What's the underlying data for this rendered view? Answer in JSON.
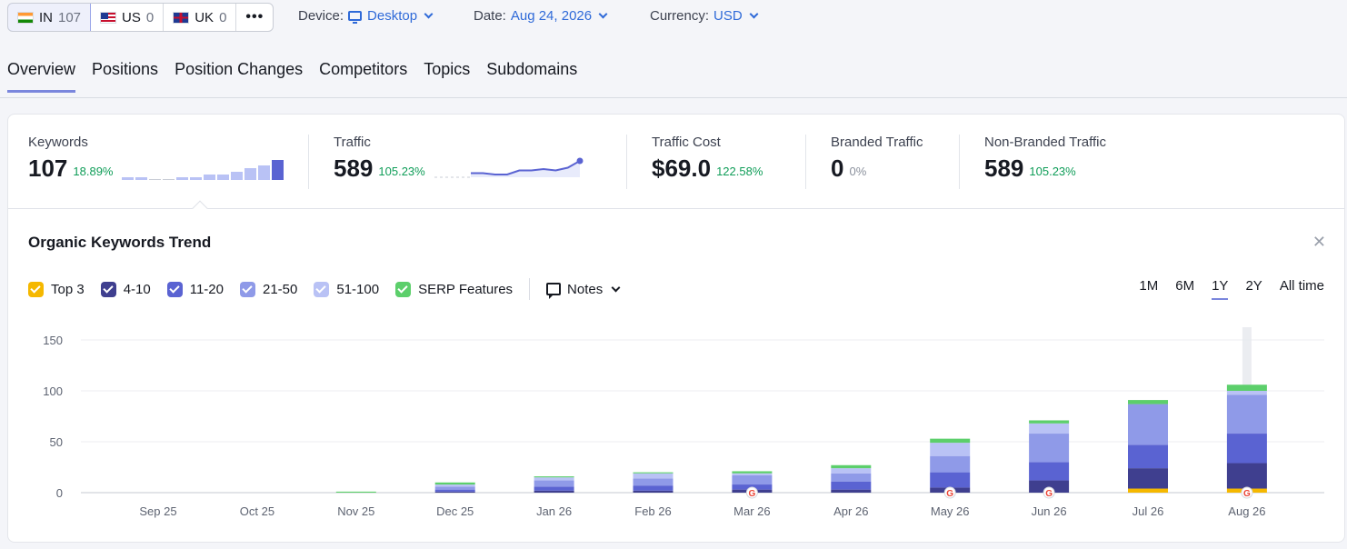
{
  "databases": [
    {
      "code": "IN",
      "count": "107",
      "flag": "india-flag-icon"
    },
    {
      "code": "US",
      "count": "0",
      "flag": "us-flag-icon"
    },
    {
      "code": "UK",
      "count": "0",
      "flag": "uk-flag-icon"
    }
  ],
  "filters": {
    "device_label": "Device:",
    "device_value": "Desktop",
    "date_label": "Date:",
    "date_value": "Aug 24, 2026",
    "currency_label": "Currency:",
    "currency_value": "USD"
  },
  "tabs": [
    "Overview",
    "Positions",
    "Position Changes",
    "Competitors",
    "Topics",
    "Subdomains"
  ],
  "metrics": {
    "keywords": {
      "label": "Keywords",
      "value": "107",
      "change": "18.89%"
    },
    "traffic": {
      "label": "Traffic",
      "value": "589",
      "change": "105.23%"
    },
    "traffic_cost": {
      "label": "Traffic Cost",
      "value": "$69.0",
      "change": "122.58%"
    },
    "branded": {
      "label": "Branded Traffic",
      "value": "0",
      "change": "0%"
    },
    "non_branded": {
      "label": "Non-Branded Traffic",
      "value": "589",
      "change": "105.23%"
    }
  },
  "chart_title": "Organic Keywords Trend",
  "legend": [
    {
      "label": "Top 3",
      "color": "#f5b800"
    },
    {
      "label": "4-10",
      "color": "#3f3f8f"
    },
    {
      "label": "11-20",
      "color": "#5a63d2"
    },
    {
      "label": "21-50",
      "color": "#8f9ae8"
    },
    {
      "label": "51-100",
      "color": "#b9c2f5"
    },
    {
      "label": "SERP Features",
      "color": "#5ccf6b"
    }
  ],
  "notes_label": "Notes",
  "ranges": [
    "1M",
    "6M",
    "1Y",
    "2Y",
    "All time"
  ],
  "active_range": "1Y",
  "chart_data": {
    "type": "bar",
    "stacked": true,
    "categories": [
      "Sep 25",
      "Oct 25",
      "Nov 25",
      "Dec 25",
      "Jan 26",
      "Feb 26",
      "Mar 26",
      "Apr 26",
      "May 26",
      "Jun 26",
      "Jul 26",
      "Aug 26"
    ],
    "series": [
      {
        "name": "Top 3",
        "values": [
          0,
          0,
          0,
          0,
          0,
          0,
          0,
          0,
          0,
          0,
          4,
          4
        ]
      },
      {
        "name": "4-10",
        "values": [
          0,
          0,
          0,
          1,
          2,
          2,
          3,
          3,
          5,
          12,
          20,
          25
        ]
      },
      {
        "name": "11-20",
        "values": [
          0,
          0,
          0,
          2,
          4,
          5,
          5,
          8,
          15,
          18,
          23,
          29
        ]
      },
      {
        "name": "21-50",
        "values": [
          0,
          0,
          0,
          3,
          6,
          7,
          9,
          8,
          16,
          28,
          40,
          38
        ]
      },
      {
        "name": "51-100",
        "values": [
          0,
          0,
          0,
          2,
          3,
          5,
          2,
          5,
          13,
          10,
          0,
          4
        ]
      },
      {
        "name": "SERP Features",
        "values": [
          0,
          0,
          1,
          2,
          1,
          1,
          2,
          3,
          4,
          3,
          4,
          6
        ]
      }
    ],
    "ylim": [
      0,
      150
    ],
    "yticks": [
      0,
      50,
      100,
      150
    ],
    "grid": true,
    "google_markers": [
      "Mar 26",
      "May 26",
      "Jun 26",
      "Aug 26"
    ],
    "highlight_category": "Aug 26"
  },
  "sparklines": {
    "keywords": [
      1,
      1,
      0,
      0,
      1,
      1,
      2,
      2,
      3,
      4,
      5,
      7
    ],
    "traffic": [
      null,
      null,
      null,
      3,
      3,
      2,
      2,
      5,
      5,
      6,
      5,
      7,
      12
    ]
  }
}
